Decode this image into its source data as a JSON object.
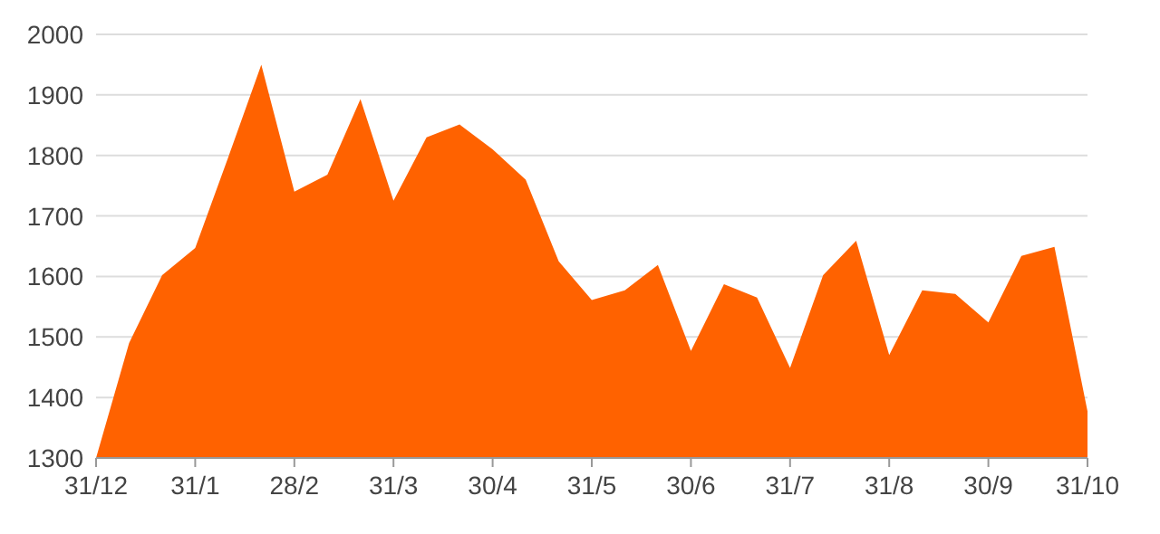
{
  "chart_data": {
    "type": "area",
    "categories": [
      "31/12",
      null,
      null,
      "31/1",
      null,
      null,
      "28/2",
      null,
      null,
      "31/3",
      null,
      null,
      "30/4",
      null,
      null,
      "31/5",
      null,
      null,
      "30/6",
      null,
      null,
      "31/7",
      null,
      null,
      "31/8",
      null,
      null,
      "30/9",
      null,
      null,
      "31/10"
    ],
    "series": [
      {
        "color": "#ff6200",
        "values": [
          1300,
          1490,
          1602,
          1647,
          1797,
          1950,
          1740,
          1768,
          1893,
          1725,
          1830,
          1851,
          1810,
          1760,
          1625,
          1561,
          1577,
          1619,
          1477,
          1587,
          1565,
          1449,
          1602,
          1659,
          1470,
          1577,
          1571,
          1524,
          1634,
          1649,
          1377
        ]
      }
    ],
    "ylim": [
      1300,
      2000
    ],
    "yticks": [
      1300,
      1400,
      1500,
      1600,
      1700,
      1800,
      1900,
      2000
    ],
    "grid": "y"
  }
}
